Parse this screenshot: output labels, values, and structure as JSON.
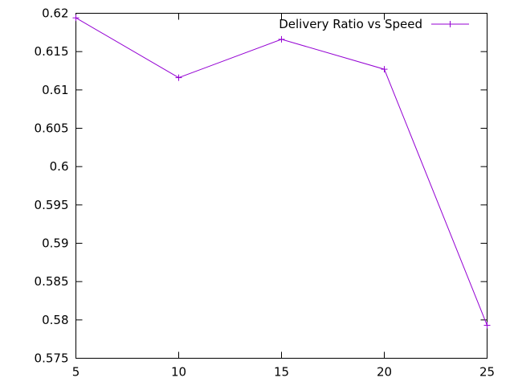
{
  "chart_data": {
    "type": "line",
    "title": "",
    "xlabel": "",
    "ylabel": "",
    "xlim": [
      5,
      25
    ],
    "ylim": [
      0.575,
      0.62
    ],
    "x_ticks": [
      5,
      10,
      15,
      20,
      25
    ],
    "x_tick_labels": [
      "5",
      "10",
      "15",
      "20",
      "25"
    ],
    "y_ticks": [
      0.575,
      0.58,
      0.585,
      0.59,
      0.595,
      0.6,
      0.605,
      0.61,
      0.615,
      0.62
    ],
    "y_tick_labels": [
      "0.575",
      "0.58",
      "0.585",
      "0.59",
      "0.595",
      "0.6",
      "0.605",
      "0.61",
      "0.615",
      "0.62"
    ],
    "grid": false,
    "legend_position": "top-right",
    "series": [
      {
        "name": "Delivery Ratio vs Speed",
        "color": "#9400d3",
        "marker": "plus",
        "x": [
          5,
          10,
          15,
          20,
          25
        ],
        "y": [
          0.6194,
          0.6116,
          0.6166,
          0.6127,
          0.5793
        ]
      }
    ]
  }
}
